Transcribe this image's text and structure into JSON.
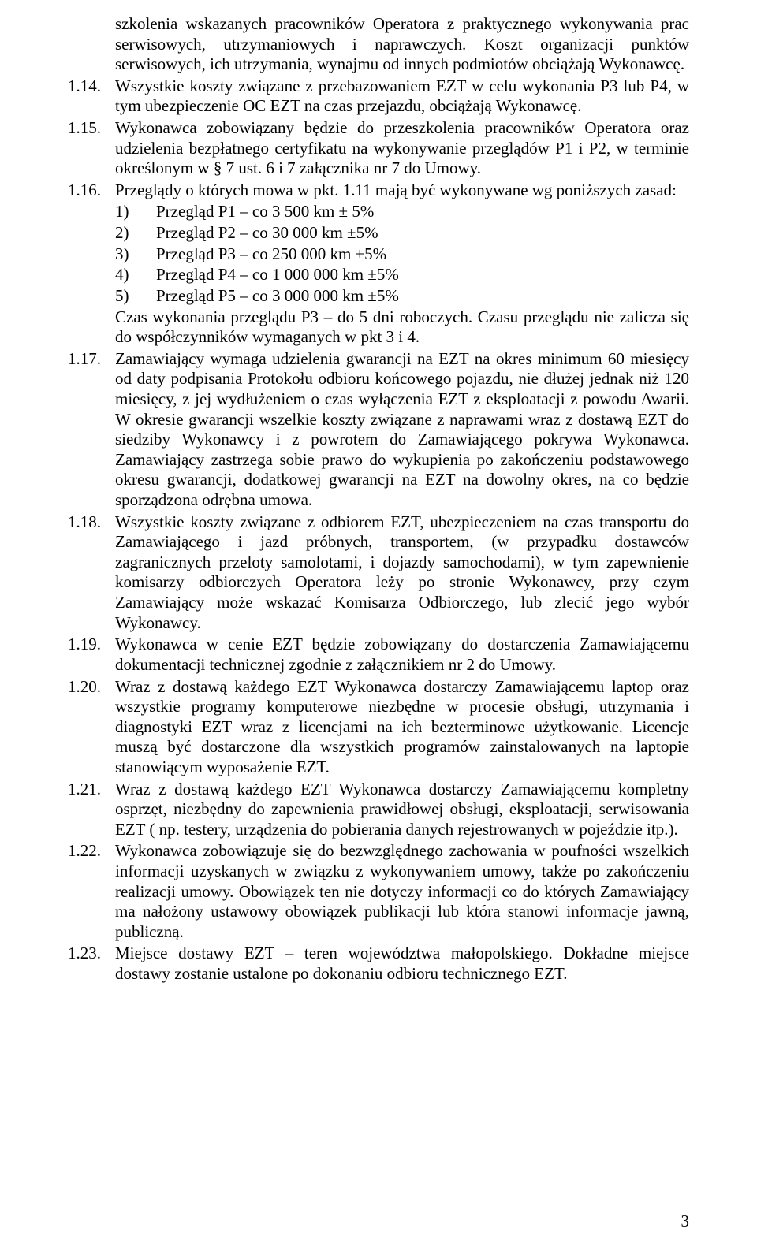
{
  "continuation_top": "szkolenia wskazanych pracowników Operatora z praktycznego wykonywania prac serwisowych, utrzymaniowych i naprawczych. Koszt organizacji punktów serwisowych, ich utrzymania, wynajmu od innych podmiotów obciążają Wykonawcę.",
  "items": [
    {
      "num": "1.14.",
      "text": "Wszystkie koszty związane z przebazowaniem EZT w celu wykonania P3 lub P4, w tym ubezpieczenie OC EZT na czas przejazdu, obciążają Wykonawcę."
    },
    {
      "num": "1.15.",
      "text": "Wykonawca zobowiązany będzie do przeszkolenia pracowników Operatora oraz udzielenia bezpłatnego certyfikatu na wykonywanie przeglądów P1 i P2, w terminie określonym w § 7 ust. 6 i 7 załącznika nr 7 do Umowy."
    },
    {
      "num": "1.16.",
      "text": "Przeglądy o których mowa w pkt. 1.11 mają być wykonywane wg poniższych zasad:",
      "sublist": [
        {
          "num": "1)",
          "text": "Przegląd P1 – co 3 500 km ± 5%"
        },
        {
          "num": "2)",
          "text": "Przegląd P2 – co 30 000 km ±5%"
        },
        {
          "num": "3)",
          "text": "Przegląd P3 – co 250 000 km ±5%"
        },
        {
          "num": "4)",
          "text": "Przegląd P4 – co 1 000 000 km ±5%"
        },
        {
          "num": "5)",
          "text": "Przegląd P5 – co 3 000 000 km ±5%"
        }
      ],
      "after_sublist": "Czas wykonania przeglądu P3 – do 5 dni roboczych. Czasu przeglądu nie zalicza się do współczynników wymaganych w pkt 3 i 4."
    },
    {
      "num": "1.17.",
      "text": "Zamawiający wymaga udzielenia gwarancji na EZT na okres minimum 60 miesięcy od daty podpisania Protokołu odbioru końcowego pojazdu, nie dłużej jednak niż 120 miesięcy, z jej wydłużeniem o czas wyłączenia EZT z eksploatacji z powodu Awarii. W okresie gwarancji wszelkie koszty związane z naprawami wraz z dostawą EZT do siedziby Wykonawcy i z powrotem do Zamawiającego pokrywa Wykonawca. Zamawiający zastrzega sobie prawo do wykupienia po zakończeniu podstawowego okresu gwarancji, dodatkowej gwarancji na EZT na dowolny okres, na co będzie sporządzona odrębna umowa."
    },
    {
      "num": "1.18.",
      "text": "Wszystkie koszty związane z odbiorem EZT, ubezpieczeniem na czas transportu do Zamawiającego i jazd próbnych, transportem, (w przypadku dostawców zagranicznych przeloty samolotami, i dojazdy samochodami), w tym zapewnienie komisarzy odbiorczych Operatora leży po stronie Wykonawcy, przy czym Zamawiający może wskazać Komisarza Odbiorczego, lub zlecić jego wybór Wykonawcy."
    },
    {
      "num": "1.19.",
      "text": "Wykonawca w cenie EZT będzie zobowiązany do dostarczenia Zamawiającemu dokumentacji technicznej zgodnie z załącznikiem nr 2 do Umowy."
    },
    {
      "num": "1.20.",
      "text": "Wraz z dostawą każdego EZT Wykonawca dostarczy Zamawiającemu laptop oraz wszystkie programy komputerowe niezbędne w procesie obsługi, utrzymania i diagnostyki EZT wraz z licencjami na ich bezterminowe użytkowanie. Licencje muszą być dostarczone dla wszystkich programów zainstalowanych na laptopie stanowiącym wyposażenie EZT."
    },
    {
      "num": "1.21.",
      "text": "Wraz z dostawą każdego EZT Wykonawca dostarczy Zamawiającemu kompletny osprzęt, niezbędny do zapewnienia prawidłowej obsługi, eksploatacji, serwisowania EZT ( np. testery, urządzenia do pobierania danych rejestrowanych w pojeździe itp.)."
    },
    {
      "num": "1.22.",
      "text": "Wykonawca zobowiązuje się do bezwzględnego zachowania w poufności wszelkich informacji uzyskanych w związku z wykonywaniem umowy, także po zakończeniu realizacji umowy. Obowiązek ten nie dotyczy informacji co do których Zamawiający ma nałożony ustawowy obowiązek publikacji lub która stanowi informacje jawną, publiczną."
    },
    {
      "num": "1.23.",
      "text": "Miejsce dostawy EZT – teren województwa małopolskiego. Dokładne miejsce dostawy zostanie ustalone po dokonaniu odbioru technicznego EZT."
    }
  ],
  "page_number": "3"
}
